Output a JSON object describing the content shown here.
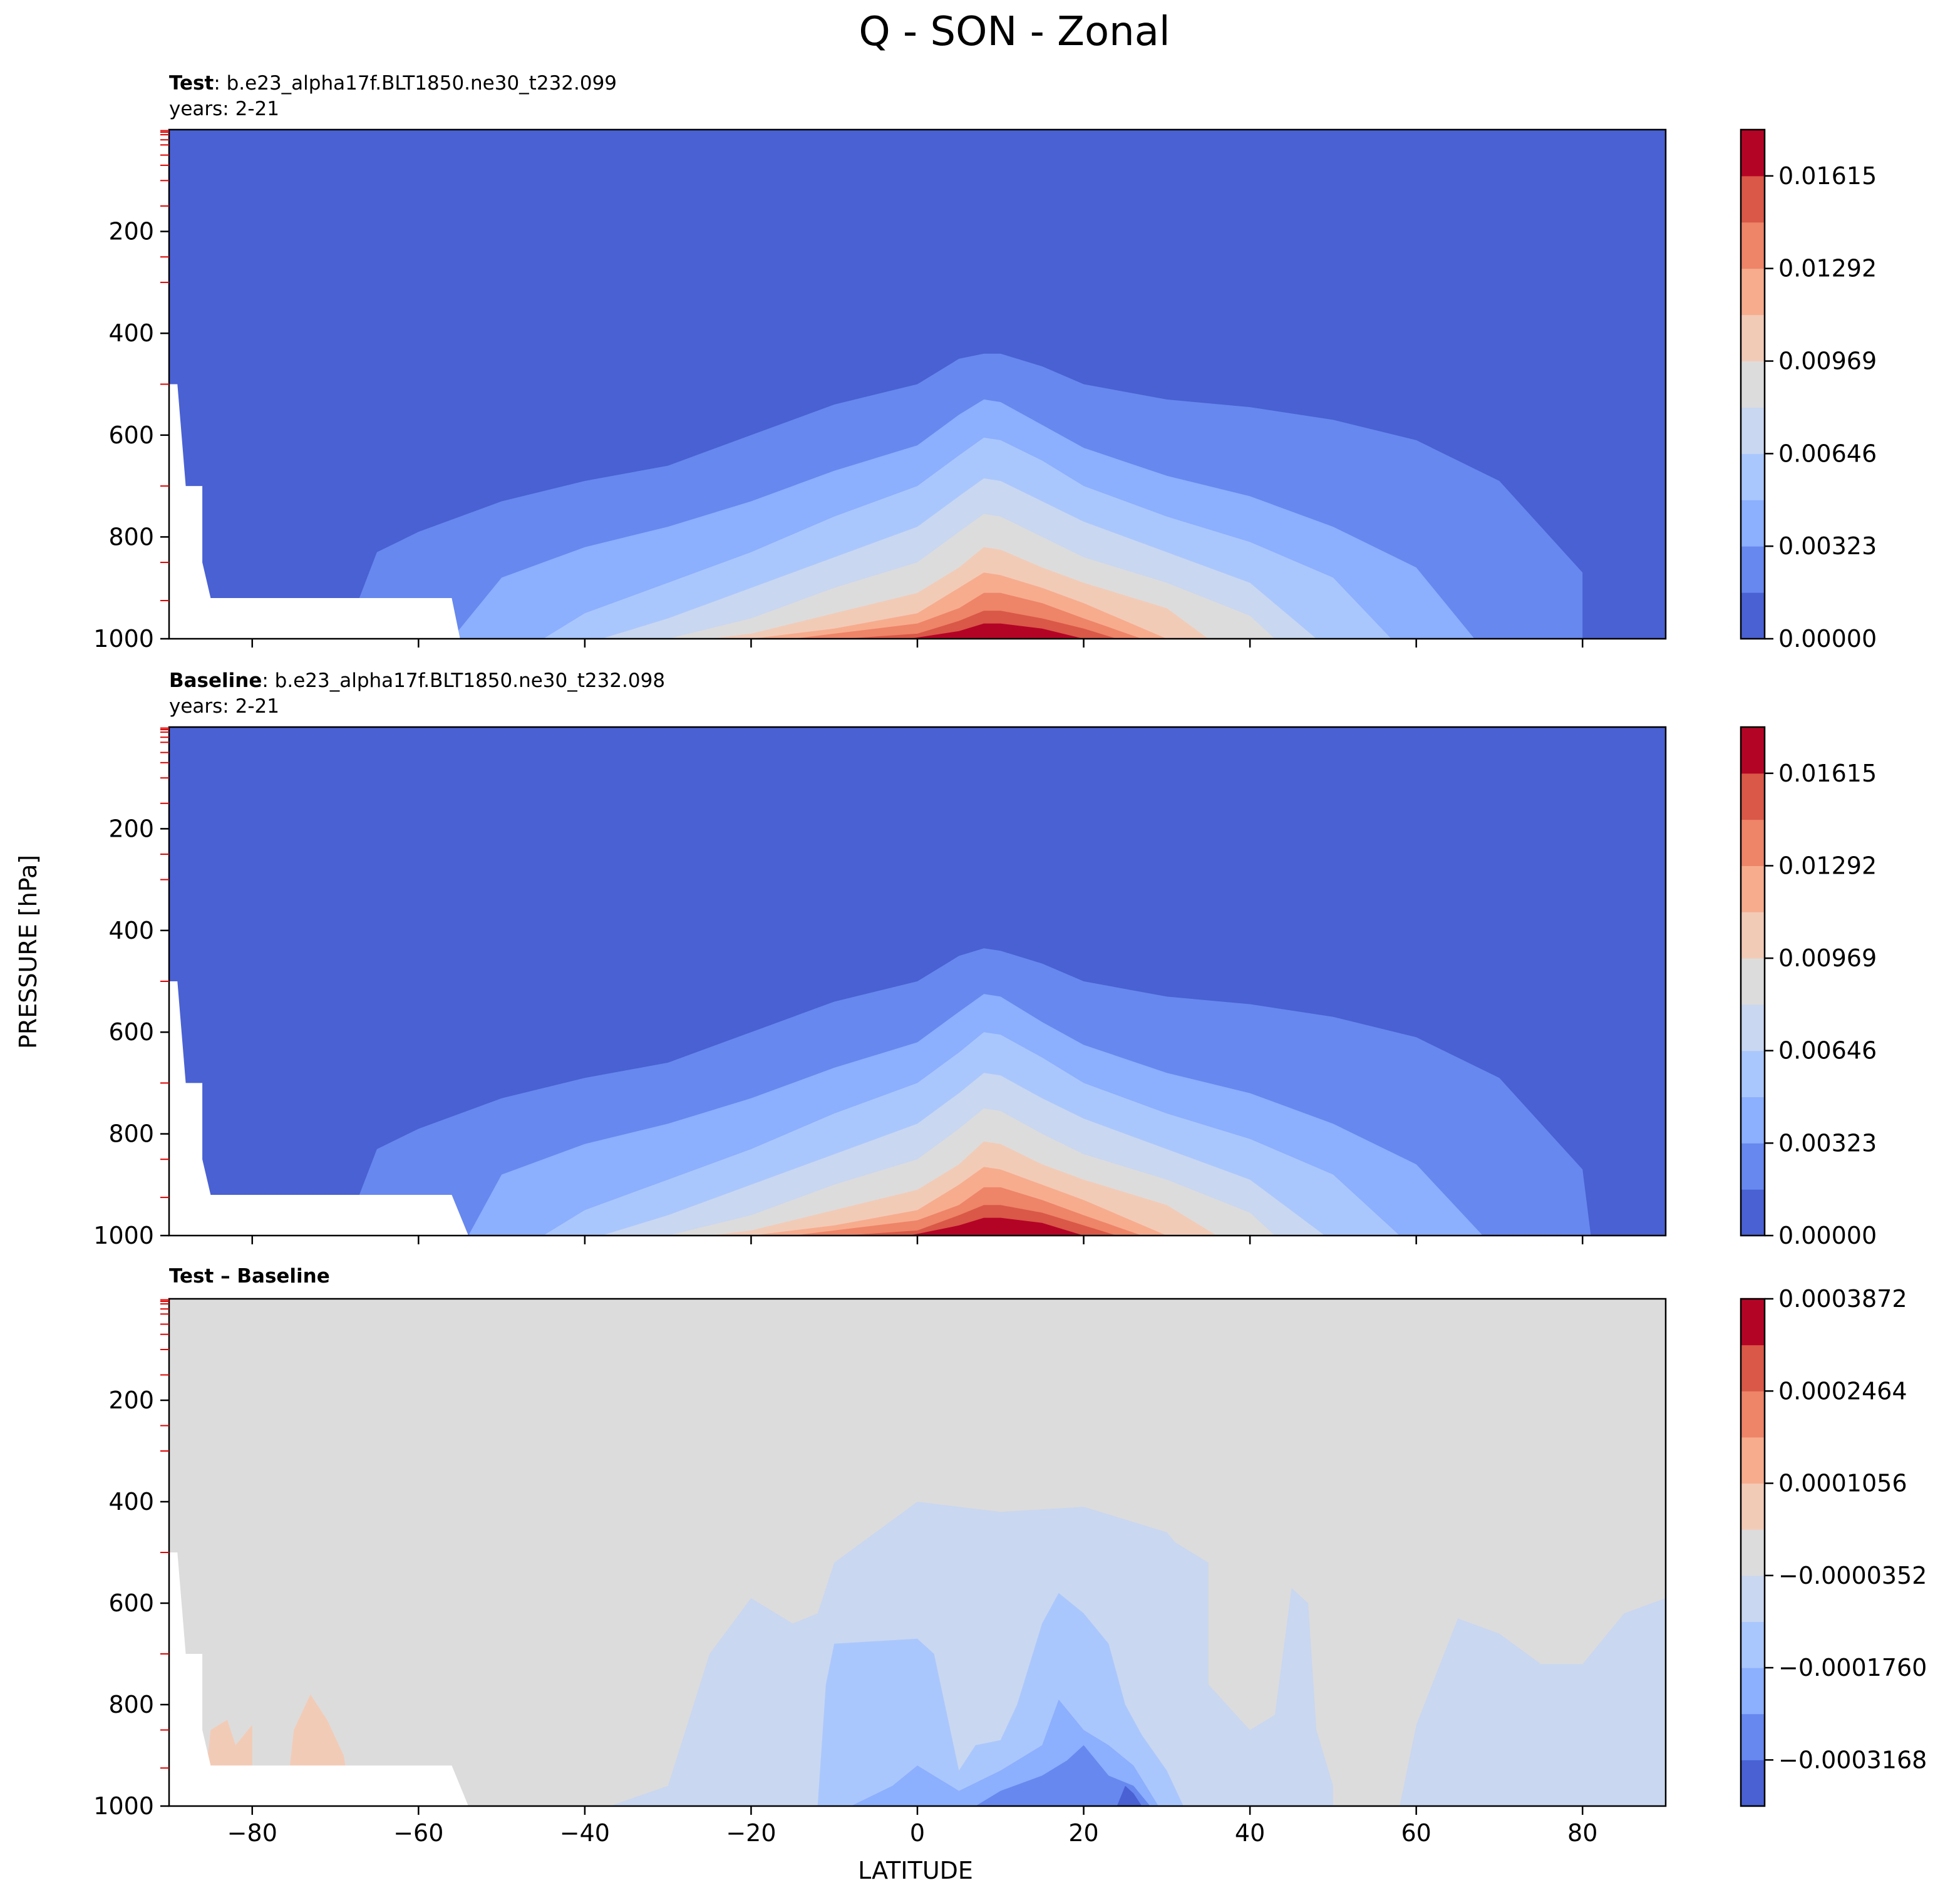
{
  "figure": {
    "title": "Q - SON - Zonal",
    "ylabel": "PRESSURE [hPa]",
    "xlabel": "LATITUDE"
  },
  "panels": [
    {
      "title_bold": "Test",
      "title_rest": ": b.e23_alpha17f.BLT1850.ne30_t232.099",
      "subtitle": "years: 2-21",
      "colorbar_ticks": [
        "0.00000",
        "0.00323",
        "0.00646",
        "0.00969",
        "0.01292",
        "0.01615"
      ]
    },
    {
      "title_bold": "Baseline",
      "title_rest": ": b.e23_alpha17f.BLT1850.ne30_t232.098",
      "subtitle": "years: 2-21",
      "colorbar_ticks": [
        "0.00000",
        "0.00323",
        "0.00646",
        "0.00969",
        "0.01292",
        "0.01615"
      ]
    },
    {
      "title_bold": "Test – Baseline",
      "title_rest": "",
      "subtitle": "",
      "colorbar_ticks": [
        "−0.0003168",
        "−0.0001760",
        "−0.0000352",
        "0.0001056",
        "0.0002464",
        "0.0003872"
      ]
    }
  ],
  "chart_data": [
    {
      "type": "heatmap",
      "subtype": "filled-contour",
      "title": "Test : b.e23_alpha17f.BLT1850.ne30_t232.099",
      "subtitle": "years: 2-21",
      "xlabel": "LATITUDE",
      "ylabel": "PRESSURE [hPa]",
      "xlim": [
        -90,
        90
      ],
      "ylim": [
        1000,
        0
      ],
      "xticks": [
        -80,
        -60,
        -40,
        -20,
        0,
        20,
        40,
        60,
        80
      ],
      "yticks": [
        200,
        400,
        600,
        800,
        1000
      ],
      "levels": [
        0,
        0.001615,
        0.00323,
        0.004845,
        0.00646,
        0.008075,
        0.00969,
        0.011305,
        0.01292,
        0.014535,
        0.01615,
        0.017765
      ],
      "colorbar_ticks": [
        0,
        0.00323,
        0.00646,
        0.00969,
        0.01292,
        0.01615
      ],
      "colormap": "coolwarm",
      "colors": [
        "#4961d2",
        "#6788ee",
        "#8caffe",
        "#aac7fd",
        "#c9d7f0",
        "#dddcdc",
        "#f2cbb7",
        "#f7ac8e",
        "#ee8468",
        "#d95847",
        "#b40426"
      ],
      "contour_tops": [
        {
          "level": 0.001615,
          "x": [
            -69,
            -65,
            -60,
            -50,
            -40,
            -30,
            -20,
            -10,
            0,
            5,
            8,
            10,
            15,
            20,
            30,
            40,
            50,
            60,
            70,
            80,
            80
          ],
          "y": [
            1000,
            830,
            790,
            730,
            690,
            660,
            600,
            540,
            500,
            450,
            440,
            440,
            465,
            500,
            530,
            545,
            570,
            610,
            690,
            870,
            1000
          ]
        },
        {
          "level": 0.00323,
          "x": [
            -56,
            -50,
            -40,
            -30,
            -20,
            -10,
            0,
            5,
            8,
            10,
            15,
            20,
            30,
            40,
            50,
            60,
            67
          ],
          "y": [
            1000,
            880,
            820,
            780,
            730,
            670,
            620,
            560,
            530,
            535,
            580,
            625,
            680,
            720,
            780,
            860,
            1000
          ]
        },
        {
          "level": 0.004845,
          "x": [
            -45,
            -40,
            -30,
            -20,
            -10,
            0,
            5,
            8,
            10,
            15,
            20,
            30,
            40,
            50,
            57
          ],
          "y": [
            1000,
            950,
            890,
            830,
            760,
            700,
            640,
            605,
            610,
            650,
            700,
            760,
            810,
            880,
            1000
          ]
        },
        {
          "level": 0.00646,
          "x": [
            -38,
            -30,
            -20,
            -10,
            0,
            5,
            8,
            10,
            15,
            20,
            30,
            40,
            48
          ],
          "y": [
            1000,
            960,
            900,
            840,
            780,
            720,
            685,
            690,
            730,
            770,
            830,
            890,
            1000
          ]
        },
        {
          "level": 0.008075,
          "x": [
            -30,
            -20,
            -10,
            0,
            5,
            8,
            10,
            15,
            20,
            30,
            40,
            43
          ],
          "y": [
            1000,
            960,
            900,
            850,
            790,
            755,
            760,
            800,
            840,
            890,
            955,
            1000
          ]
        },
        {
          "level": 0.00969,
          "x": [
            -25,
            -20,
            -10,
            0,
            5,
            8,
            10,
            15,
            20,
            30,
            35
          ],
          "y": [
            1000,
            990,
            950,
            910,
            860,
            820,
            825,
            860,
            890,
            940,
            1000
          ]
        },
        {
          "level": 0.011305,
          "x": [
            -20,
            -10,
            0,
            5,
            8,
            10,
            15,
            20,
            30
          ],
          "y": [
            1000,
            980,
            950,
            900,
            870,
            875,
            900,
            930,
            1000
          ]
        },
        {
          "level": 0.01292,
          "x": [
            -15,
            -10,
            0,
            5,
            8,
            10,
            15,
            20,
            27
          ],
          "y": [
            1000,
            990,
            970,
            940,
            910,
            910,
            930,
            960,
            1000
          ]
        },
        {
          "level": 0.014535,
          "x": [
            -9,
            0,
            5,
            8,
            10,
            15,
            20,
            24
          ],
          "y": [
            1000,
            990,
            965,
            945,
            945,
            960,
            980,
            1000
          ]
        },
        {
          "level": 0.01615,
          "x": [
            -1,
            5,
            8,
            10,
            15,
            20
          ],
          "y": [
            1000,
            985,
            970,
            970,
            980,
            1000
          ]
        },
        {
          "level": 0.017765,
          "x": [
            3,
            8,
            12,
            18
          ],
          "y": [
            1000,
            985,
            985,
            1000
          ]
        }
      ],
      "missing_region": {
        "x": [
          -90,
          -89,
          -88,
          -86,
          -86,
          -85,
          -84,
          -56,
          -55
        ],
        "y": [
          500,
          500,
          700,
          700,
          850,
          920,
          920,
          920,
          1000
        ]
      }
    },
    {
      "type": "heatmap",
      "subtype": "filled-contour",
      "title": "Baseline : b.e23_alpha17f.BLT1850.ne30_t232.098",
      "subtitle": "years: 2-21",
      "xlabel": "LATITUDE",
      "ylabel": "PRESSURE [hPa]",
      "xlim": [
        -90,
        90
      ],
      "ylim": [
        1000,
        0
      ],
      "xticks": [
        -80,
        -60,
        -40,
        -20,
        0,
        20,
        40,
        60,
        80
      ],
      "yticks": [
        200,
        400,
        600,
        800,
        1000
      ],
      "levels": [
        0,
        0.001615,
        0.00323,
        0.004845,
        0.00646,
        0.008075,
        0.00969,
        0.011305,
        0.01292,
        0.014535,
        0.01615,
        0.017765
      ],
      "colorbar_ticks": [
        0,
        0.00323,
        0.00646,
        0.00969,
        0.01292,
        0.01615
      ],
      "colormap": "coolwarm",
      "colors": [
        "#4961d2",
        "#6788ee",
        "#8caffe",
        "#aac7fd",
        "#c9d7f0",
        "#dddcdc",
        "#f2cbb7",
        "#f7ac8e",
        "#ee8468",
        "#d95847",
        "#b40426"
      ],
      "contour_tops": [
        {
          "level": 0.001615,
          "x": [
            -69,
            -65,
            -60,
            -50,
            -40,
            -30,
            -20,
            -10,
            0,
            5,
            8,
            10,
            15,
            20,
            30,
            40,
            50,
            60,
            70,
            80,
            81
          ],
          "y": [
            1000,
            830,
            790,
            730,
            690,
            660,
            600,
            540,
            500,
            450,
            435,
            440,
            465,
            500,
            530,
            545,
            570,
            610,
            690,
            870,
            1000
          ]
        },
        {
          "level": 0.00323,
          "x": [
            -54,
            -50,
            -40,
            -30,
            -20,
            -10,
            0,
            5,
            8,
            10,
            15,
            20,
            30,
            40,
            50,
            60,
            68
          ],
          "y": [
            1000,
            880,
            820,
            780,
            730,
            670,
            620,
            560,
            525,
            530,
            580,
            625,
            680,
            720,
            780,
            860,
            1000
          ]
        },
        {
          "level": 0.004845,
          "x": [
            -45,
            -40,
            -30,
            -20,
            -10,
            0,
            5,
            8,
            10,
            15,
            20,
            30,
            40,
            50,
            58
          ],
          "y": [
            1000,
            950,
            890,
            830,
            760,
            700,
            640,
            600,
            605,
            650,
            700,
            760,
            810,
            880,
            1000
          ]
        },
        {
          "level": 0.00646,
          "x": [
            -38,
            -30,
            -20,
            -10,
            0,
            5,
            8,
            10,
            15,
            20,
            30,
            40,
            49
          ],
          "y": [
            1000,
            960,
            900,
            840,
            780,
            720,
            680,
            685,
            730,
            770,
            830,
            890,
            1000
          ]
        },
        {
          "level": 0.008075,
          "x": [
            -30,
            -20,
            -10,
            0,
            5,
            8,
            10,
            15,
            20,
            30,
            40,
            43
          ],
          "y": [
            1000,
            960,
            900,
            850,
            790,
            750,
            755,
            800,
            840,
            890,
            955,
            1000
          ]
        },
        {
          "level": 0.00969,
          "x": [
            -25,
            -20,
            -10,
            0,
            5,
            8,
            10,
            15,
            20,
            30,
            36
          ],
          "y": [
            1000,
            990,
            950,
            910,
            860,
            815,
            820,
            860,
            890,
            940,
            1000
          ]
        },
        {
          "level": 0.011305,
          "x": [
            -20,
            -10,
            0,
            5,
            8,
            10,
            15,
            20,
            30
          ],
          "y": [
            1000,
            980,
            950,
            900,
            865,
            870,
            900,
            930,
            1000
          ]
        },
        {
          "level": 0.01292,
          "x": [
            -15,
            -10,
            0,
            5,
            8,
            10,
            15,
            20,
            27
          ],
          "y": [
            1000,
            990,
            970,
            940,
            905,
            905,
            930,
            960,
            1000
          ]
        },
        {
          "level": 0.014535,
          "x": [
            -9,
            0,
            5,
            8,
            10,
            15,
            20,
            24
          ],
          "y": [
            1000,
            990,
            960,
            940,
            940,
            955,
            980,
            1000
          ]
        },
        {
          "level": 0.01615,
          "x": [
            -1,
            5,
            8,
            10,
            15,
            20
          ],
          "y": [
            1000,
            980,
            965,
            965,
            975,
            1000
          ]
        },
        {
          "level": 0.017765,
          "x": [
            3,
            8,
            12,
            18
          ],
          "y": [
            1000,
            980,
            980,
            1000
          ]
        }
      ],
      "missing_region": {
        "x": [
          -90,
          -89,
          -88,
          -86,
          -86,
          -85,
          -84,
          -56,
          -54
        ],
        "y": [
          500,
          500,
          700,
          700,
          850,
          920,
          920,
          920,
          1000
        ]
      }
    },
    {
      "type": "heatmap",
      "subtype": "filled-contour",
      "title": "Test – Baseline",
      "xlabel": "LATITUDE",
      "ylabel": "PRESSURE [hPa]",
      "xlim": [
        -90,
        90
      ],
      "ylim": [
        1000,
        0
      ],
      "xticks": [
        -80,
        -60,
        -40,
        -20,
        0,
        20,
        40,
        60,
        80
      ],
      "yticks": [
        200,
        400,
        600,
        800,
        1000
      ],
      "levels": [
        -0.0003872,
        -0.0003168,
        -0.0002464,
        -0.000176,
        -0.0001056,
        -3.52e-05,
        3.52e-05,
        0.0001056,
        0.000176,
        0.0002464,
        0.0003168,
        0.0003872
      ],
      "colorbar_ticks": [
        -0.0003168,
        -0.000176,
        -3.52e-05,
        0.0001056,
        0.0002464,
        0.0003872
      ],
      "colormap": "coolwarm",
      "colors": [
        "#4961d2",
        "#6788ee",
        "#8caffe",
        "#aac7fd",
        "#c9d7f0",
        "#dddcdc",
        "#f2cbb7",
        "#f7ac8e",
        "#ee8468",
        "#d95847",
        "#b40426"
      ],
      "regions": [
        {
          "level": 3.52e-05,
          "x": [
            -86,
            -85,
            -83,
            -82,
            -80,
            -80
          ],
          "y": [
            1000,
            850,
            830,
            880,
            840,
            1000
          ]
        },
        {
          "level": 3.52e-05,
          "x": [
            -76,
            -75,
            -73,
            -71,
            -69,
            -68
          ],
          "y": [
            1000,
            850,
            780,
            830,
            900,
            1000
          ]
        },
        {
          "level": -0.0001056,
          "x": [
            -37,
            -30,
            -25,
            -20,
            -15,
            -12,
            -10,
            -5,
            0,
            5,
            10,
            20,
            30,
            31,
            35,
            35,
            40,
            43,
            45,
            47,
            48,
            50,
            50,
            58,
            60,
            65,
            70,
            75,
            80,
            85,
            90,
            90
          ],
          "y": [
            1000,
            960,
            700,
            590,
            640,
            620,
            520,
            460,
            400,
            410,
            420,
            410,
            460,
            480,
            520,
            760,
            850,
            820,
            570,
            600,
            850,
            960,
            1000,
            1000,
            840,
            630,
            660,
            720,
            720,
            620,
            590,
            1000
          ]
        },
        {
          "level": -0.000176,
          "x": [
            -12,
            -11,
            -10,
            0,
            2,
            5,
            7,
            10,
            12,
            15,
            17,
            20,
            23,
            25,
            27,
            30,
            32
          ],
          "y": [
            1000,
            760,
            680,
            670,
            700,
            930,
            880,
            870,
            800,
            640,
            580,
            620,
            680,
            800,
            860,
            930,
            1000
          ]
        },
        {
          "level": -0.0002464,
          "x": [
            -8,
            -3,
            0,
            5,
            10,
            15,
            17,
            20,
            23,
            26,
            29
          ],
          "y": [
            1000,
            960,
            920,
            970,
            930,
            880,
            790,
            850,
            880,
            920,
            1000
          ]
        },
        {
          "level": -0.0003168,
          "x": [
            7,
            10,
            15,
            18,
            20,
            23,
            26,
            28
          ],
          "y": [
            1000,
            970,
            940,
            910,
            880,
            940,
            960,
            1000
          ]
        },
        {
          "level": -0.0003872,
          "x": [
            24,
            25,
            26,
            27
          ],
          "y": [
            1000,
            960,
            975,
            1000
          ]
        }
      ],
      "missing_region": {
        "x": [
          -90,
          -89,
          -88,
          -86,
          -86,
          -85,
          -84,
          -56,
          -54
        ],
        "y": [
          500,
          500,
          700,
          700,
          850,
          920,
          920,
          920,
          1000
        ]
      }
    }
  ]
}
